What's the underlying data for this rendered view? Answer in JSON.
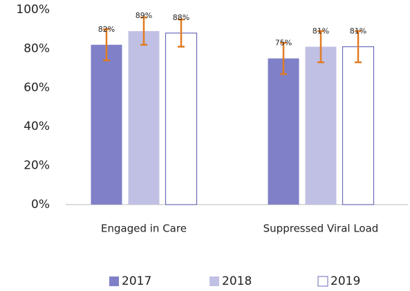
{
  "chart_data": {
    "type": "bar",
    "categories": [
      "Engaged in Care",
      "Suppressed Viral Load"
    ],
    "series": [
      {
        "name": "2017",
        "color": "#8080c8",
        "values": [
          82,
          75
        ],
        "value_labels": [
          "82%",
          "75%"
        ],
        "errors": [
          8,
          8
        ]
      },
      {
        "name": "2018",
        "color": "#c0c0e4",
        "values": [
          89,
          81
        ],
        "value_labels": [
          "89%",
          "81%"
        ],
        "errors": [
          7,
          8
        ]
      },
      {
        "name": "2019",
        "color": "#ffffff",
        "values": [
          88,
          81
        ],
        "value_labels": [
          "88%",
          "81%"
        ],
        "errors": [
          7,
          8
        ]
      }
    ],
    "error_color": "#e07b22",
    "ylim": [
      0,
      100
    ],
    "yticks": [
      {
        "value": 0,
        "label": "0%"
      },
      {
        "value": 20,
        "label": "20%"
      },
      {
        "value": 40,
        "label": "40%"
      },
      {
        "value": 60,
        "label": "60%"
      },
      {
        "value": 80,
        "label": "80%"
      },
      {
        "value": 100,
        "label": "100%"
      }
    ],
    "grid": false,
    "legend": "bottom"
  }
}
